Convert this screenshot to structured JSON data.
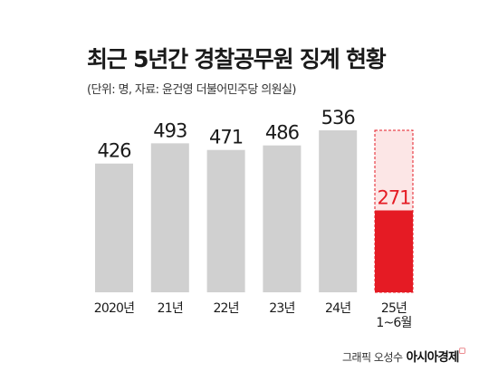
{
  "title": "최근 5년간 경찰공무원 징계 현황",
  "subtitle": "(단위: 명, 자료: 윤건영 더불어민주당 의원실)",
  "credit": {
    "text": "그래픽 오성수",
    "brand": "아시아경제",
    "brand_mark": "◻"
  },
  "colors": {
    "bar": "#d0d0d0",
    "highlight": "#e51b24",
    "highlight_light": "#fce6e6",
    "label": "#1a1a1a"
  },
  "chart_data": {
    "type": "bar",
    "title": "최근 5년간 경찰공무원 징계 현황",
    "subtitle": "(단위: 명, 자료: 윤건영 더불어민주당 의원실)",
    "xlabel": "",
    "ylabel": "",
    "categories": [
      "2020년",
      "21년",
      "22년",
      "23년",
      "24년",
      "25년\n1~6월"
    ],
    "values": [
      426,
      493,
      471,
      486,
      536,
      271
    ],
    "highlight_index": 5,
    "highlight_outline_value": 536,
    "ylim": [
      0,
      560
    ],
    "grid": false,
    "legend": "none"
  }
}
